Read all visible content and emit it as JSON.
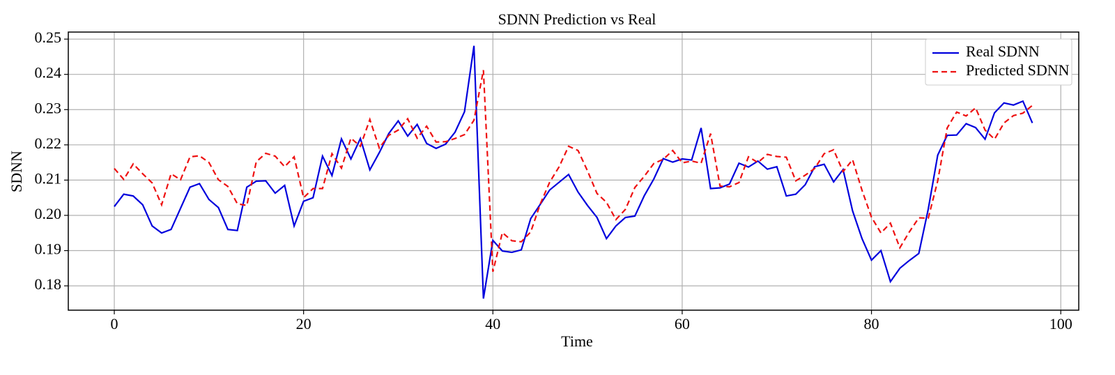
{
  "chart_data": {
    "type": "line",
    "title": "SDNN Prediction vs Real",
    "x_label": "Time",
    "y_label": "SDNN",
    "x": [
      0,
      1,
      2,
      3,
      4,
      5,
      6,
      7,
      8,
      9,
      10,
      11,
      12,
      13,
      14,
      15,
      16,
      17,
      18,
      19,
      20,
      21,
      22,
      23,
      24,
      25,
      26,
      27,
      28,
      29,
      30,
      31,
      32,
      33,
      34,
      35,
      36,
      37,
      38,
      39,
      40,
      41,
      42,
      43,
      44,
      45,
      46,
      47,
      48,
      49,
      50,
      51,
      52,
      53,
      54,
      55,
      56,
      57,
      58,
      59,
      60,
      61,
      62,
      63,
      64,
      65,
      66,
      67,
      68,
      69,
      70,
      71,
      72,
      73,
      74,
      75,
      76,
      77,
      78,
      79,
      80,
      81,
      82,
      83,
      84,
      85,
      86,
      87,
      88,
      89,
      90,
      91,
      92,
      93,
      94,
      95,
      96,
      97
    ],
    "series": [
      {
        "name": "Real SDNN",
        "color": "#0000dd",
        "dash": "solid",
        "values": [
          0.2025,
          0.206,
          0.2055,
          0.203,
          0.197,
          0.195,
          0.196,
          0.202,
          0.208,
          0.209,
          0.2045,
          0.2022,
          0.196,
          0.1957,
          0.208,
          0.2097,
          0.2098,
          0.2063,
          0.2085,
          0.197,
          0.204,
          0.205,
          0.2168,
          0.2113,
          0.2217,
          0.216,
          0.2218,
          0.2129,
          0.2178,
          0.2232,
          0.2268,
          0.2225,
          0.2258,
          0.2204,
          0.219,
          0.2202,
          0.2236,
          0.2294,
          0.2481,
          0.1764,
          0.1929,
          0.1899,
          0.1895,
          0.1902,
          0.1991,
          0.2031,
          0.2072,
          0.2094,
          0.2116,
          0.2066,
          0.2028,
          0.1994,
          0.1934,
          0.197,
          0.1994,
          0.1998,
          0.2056,
          0.2103,
          0.2161,
          0.2151,
          0.216,
          0.2157,
          0.2248,
          0.2076,
          0.2078,
          0.2089,
          0.2148,
          0.2137,
          0.2154,
          0.2131,
          0.2138,
          0.2055,
          0.206,
          0.2087,
          0.2138,
          0.2145,
          0.2095,
          0.213,
          0.2013,
          0.1934,
          0.1873,
          0.19,
          0.1812,
          0.185,
          0.1872,
          0.1892,
          0.2018,
          0.2171,
          0.2227,
          0.2228,
          0.226,
          0.2249,
          0.2216,
          0.2291,
          0.2319,
          0.2313,
          0.2324,
          0.2262
        ]
      },
      {
        "name": "Predicted SDNN",
        "color": "#ee1111",
        "dash": "dashed",
        "values": [
          0.2133,
          0.2102,
          0.2146,
          0.2118,
          0.2092,
          0.203,
          0.2118,
          0.2101,
          0.2166,
          0.2169,
          0.215,
          0.2101,
          0.2082,
          0.2033,
          0.2028,
          0.2152,
          0.2176,
          0.2168,
          0.2138,
          0.2166,
          0.205,
          0.2076,
          0.2076,
          0.2175,
          0.2134,
          0.2219,
          0.2196,
          0.2272,
          0.2191,
          0.2227,
          0.2242,
          0.2274,
          0.2219,
          0.2253,
          0.2208,
          0.2209,
          0.2218,
          0.2229,
          0.227,
          0.2412,
          0.184,
          0.1951,
          0.1928,
          0.1925,
          0.1953,
          0.2032,
          0.2094,
          0.2138,
          0.2196,
          0.2184,
          0.2126,
          0.2062,
          0.2037,
          0.1988,
          0.2017,
          0.2079,
          0.2111,
          0.2147,
          0.2159,
          0.2184,
          0.2149,
          0.2154,
          0.2148,
          0.2232,
          0.2083,
          0.2081,
          0.2093,
          0.2166,
          0.215,
          0.2173,
          0.2167,
          0.2165,
          0.2098,
          0.2114,
          0.2133,
          0.2175,
          0.2186,
          0.2124,
          0.2158,
          0.2071,
          0.1995,
          0.195,
          0.1978,
          0.1908,
          0.1953,
          0.1993,
          0.1992,
          0.2098,
          0.2248,
          0.2293,
          0.2282,
          0.2305,
          0.2242,
          0.2216,
          0.2262,
          0.2283,
          0.229,
          0.2312
        ]
      }
    ],
    "xlim": [
      -4.86,
      101.9
    ],
    "ylim": [
      0.1731,
      0.252
    ],
    "xticks": [
      0,
      20,
      40,
      60,
      80,
      100
    ],
    "yticks": [
      0.18,
      0.19,
      {
        "value": 0.2,
        "label": "0.20"
      },
      0.21,
      0.22,
      0.23,
      0.24,
      0.25
    ],
    "grid": true,
    "legend": "upper right"
  }
}
